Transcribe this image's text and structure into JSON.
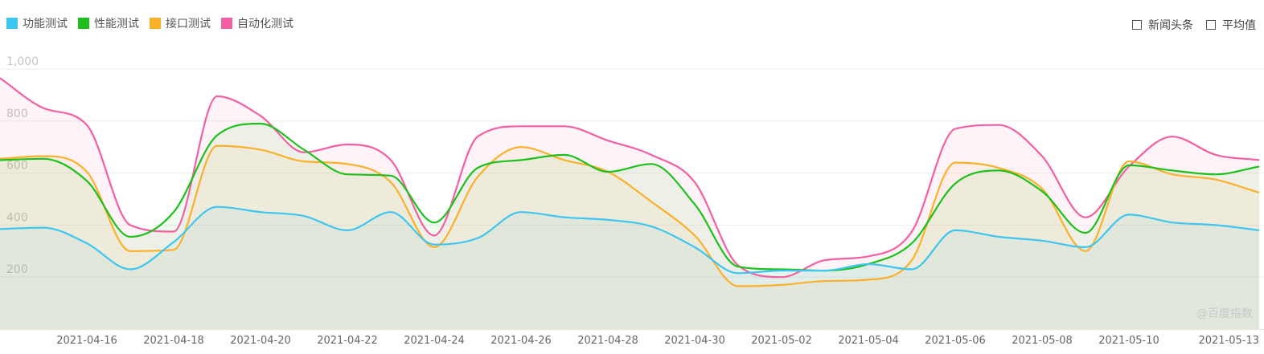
{
  "legend": {
    "items": [
      {
        "label": "功能测试",
        "color": "#3ec5f0"
      },
      {
        "label": "性能测试",
        "color": "#1ec01e"
      },
      {
        "label": "接口测试",
        "color": "#fbb02c"
      },
      {
        "label": "自动化测试",
        "color": "#f25fa2"
      }
    ]
  },
  "toggles": {
    "news_label": "新闻头条",
    "avg_label": "平均值"
  },
  "watermark": "@百度指数",
  "chart_data": {
    "type": "area",
    "ylim": [
      0,
      1000
    ],
    "yticks": [
      "200",
      "400",
      "600",
      "800",
      "1,000"
    ],
    "ytick_values": [
      200,
      400,
      600,
      800,
      1000
    ],
    "xticks": [
      "2021-04-16",
      "2021-04-18",
      "2021-04-20",
      "2021-04-22",
      "2021-04-24",
      "2021-04-26",
      "2021-04-28",
      "2021-04-30",
      "2021-05-02",
      "2021-05-04",
      "2021-05-06",
      "2021-05-08",
      "2021-05-10",
      "2021-05-13"
    ],
    "x": [
      "2021-04-14",
      "2021-04-15",
      "2021-04-16",
      "2021-04-17",
      "2021-04-18",
      "2021-04-19",
      "2021-04-20",
      "2021-04-21",
      "2021-04-22",
      "2021-04-23",
      "2021-04-24",
      "2021-04-25",
      "2021-04-26",
      "2021-04-27",
      "2021-04-28",
      "2021-04-29",
      "2021-04-30",
      "2021-05-01",
      "2021-05-02",
      "2021-05-03",
      "2021-05-04",
      "2021-05-05",
      "2021-05-06",
      "2021-05-07",
      "2021-05-08",
      "2021-05-09",
      "2021-05-10",
      "2021-05-11",
      "2021-05-12",
      "2021-05-13"
    ],
    "series": [
      {
        "name": "功能测试",
        "color": "#3ec5f0",
        "values": [
          385,
          390,
          330,
          230,
          335,
          470,
          450,
          435,
          380,
          450,
          325,
          350,
          450,
          430,
          420,
          395,
          315,
          215,
          225,
          225,
          250,
          230,
          380,
          355,
          340,
          315,
          440,
          410,
          400,
          380
        ]
      },
      {
        "name": "性能测试",
        "color": "#1ec01e",
        "values": [
          650,
          655,
          570,
          355,
          450,
          745,
          790,
          690,
          595,
          590,
          410,
          620,
          650,
          670,
          605,
          635,
          480,
          240,
          230,
          225,
          250,
          330,
          560,
          610,
          530,
          370,
          630,
          610,
          595,
          625
        ]
      },
      {
        "name": "接口测试",
        "color": "#fbb02c",
        "values": [
          655,
          665,
          605,
          300,
          305,
          705,
          690,
          645,
          635,
          565,
          315,
          585,
          700,
          650,
          605,
          490,
          360,
          165,
          170,
          185,
          190,
          265,
          640,
          620,
          540,
          300,
          645,
          595,
          575,
          525
        ]
      },
      {
        "name": "自动化测试",
        "color": "#f25fa2",
        "values": [
          965,
          850,
          785,
          400,
          375,
          895,
          820,
          680,
          710,
          650,
          360,
          740,
          780,
          780,
          725,
          670,
          565,
          245,
          200,
          265,
          280,
          375,
          770,
          785,
          665,
          430,
          625,
          740,
          670,
          650
        ]
      }
    ]
  }
}
